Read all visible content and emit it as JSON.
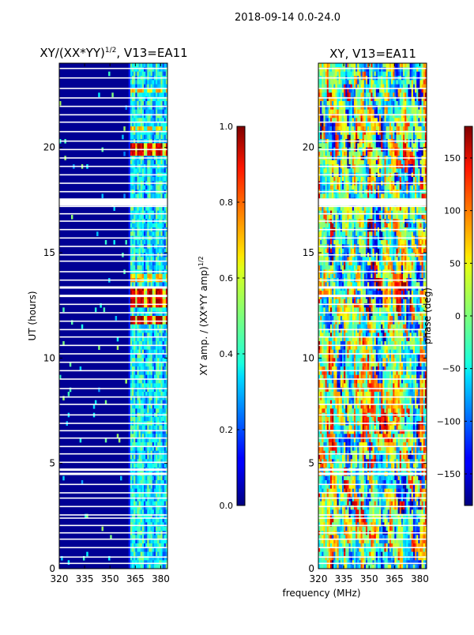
{
  "suptitle": "2018-09-14 0.0-24.0",
  "colors": {
    "frame": "#000000",
    "gap": "#ffffff"
  },
  "chart_data": [
    {
      "type": "heatmap",
      "id": "amplitude",
      "title_main": "XY/(XX*YY)",
      "title_sup": "1/2",
      "title_suffix": ", V13=EA11",
      "xlabel": "",
      "ylabel": "UT (hours)",
      "xlim": [
        320,
        384
      ],
      "ylim": [
        0,
        24
      ],
      "xticks": [
        "320",
        "335",
        "350",
        "365",
        "380"
      ],
      "xtick_values": [
        320,
        335,
        350,
        365,
        380
      ],
      "yticks": [
        "0",
        "5",
        "10",
        "15",
        "20"
      ],
      "ytick_values": [
        0,
        5,
        10,
        15,
        20
      ],
      "colorbar": {
        "label_main": "XY amp. / (XX*YY amp)",
        "label_sup": "1/2",
        "ticks": [
          "0.0",
          "0.2",
          "0.4",
          "0.6",
          "0.8",
          "1.0"
        ],
        "tick_values": [
          0.0,
          0.2,
          0.4,
          0.6,
          0.8,
          1.0
        ],
        "range": [
          0.0,
          1.0
        ]
      },
      "description": "Background near 0 (dark blue) for 320-360 MHz; 360-384 MHz band shows values 0.3-0.6 with peaks near 1.0 around 12-13 UT and 19.5-20 UT"
    },
    {
      "type": "heatmap",
      "id": "phase",
      "title_main": "XY, V13=EA11",
      "xlabel": "frequency (MHz)",
      "ylabel": "",
      "xlim": [
        320,
        384
      ],
      "ylim": [
        0,
        24
      ],
      "xticks": [
        "320",
        "335",
        "350",
        "365",
        "380"
      ],
      "xtick_values": [
        320,
        335,
        350,
        365,
        380
      ],
      "yticks": [
        "0",
        "5",
        "10",
        "15",
        "20"
      ],
      "ytick_values": [
        0,
        5,
        10,
        15,
        20
      ],
      "colorbar": {
        "label": "phase (deg)",
        "ticks": [
          "−150",
          "−100",
          "−50",
          "0",
          "50",
          "100",
          "150"
        ],
        "tick_values": [
          -150,
          -100,
          -50,
          0,
          50,
          100,
          150
        ],
        "range": [
          -180,
          180
        ]
      },
      "description": "Phase spans full -180 to 180 deg range, noisy across all frequencies and times"
    }
  ],
  "gap_rows_ut": [
    0.25,
    0.55,
    1.0,
    1.4,
    1.7,
    2.05,
    2.4,
    2.55,
    2.95,
    3.35,
    3.6,
    4.0,
    4.5,
    4.7,
    5.05,
    5.45,
    5.8,
    6.2,
    6.55,
    6.9,
    7.3,
    7.8,
    8.15,
    8.55,
    9.0,
    9.4,
    9.8,
    10.2,
    10.6,
    11.0,
    11.35,
    11.75,
    12.15,
    12.55,
    12.95,
    13.35,
    13.7,
    14.1,
    14.6,
    14.9,
    15.3,
    15.7,
    16.1,
    16.5,
    16.85,
    17.2,
    17.55,
    17.9,
    18.3,
    18.7,
    19.1,
    19.5,
    19.9,
    20.3,
    20.75,
    21.2,
    21.55,
    21.95,
    22.35,
    22.8,
    23.3,
    23.75
  ]
}
